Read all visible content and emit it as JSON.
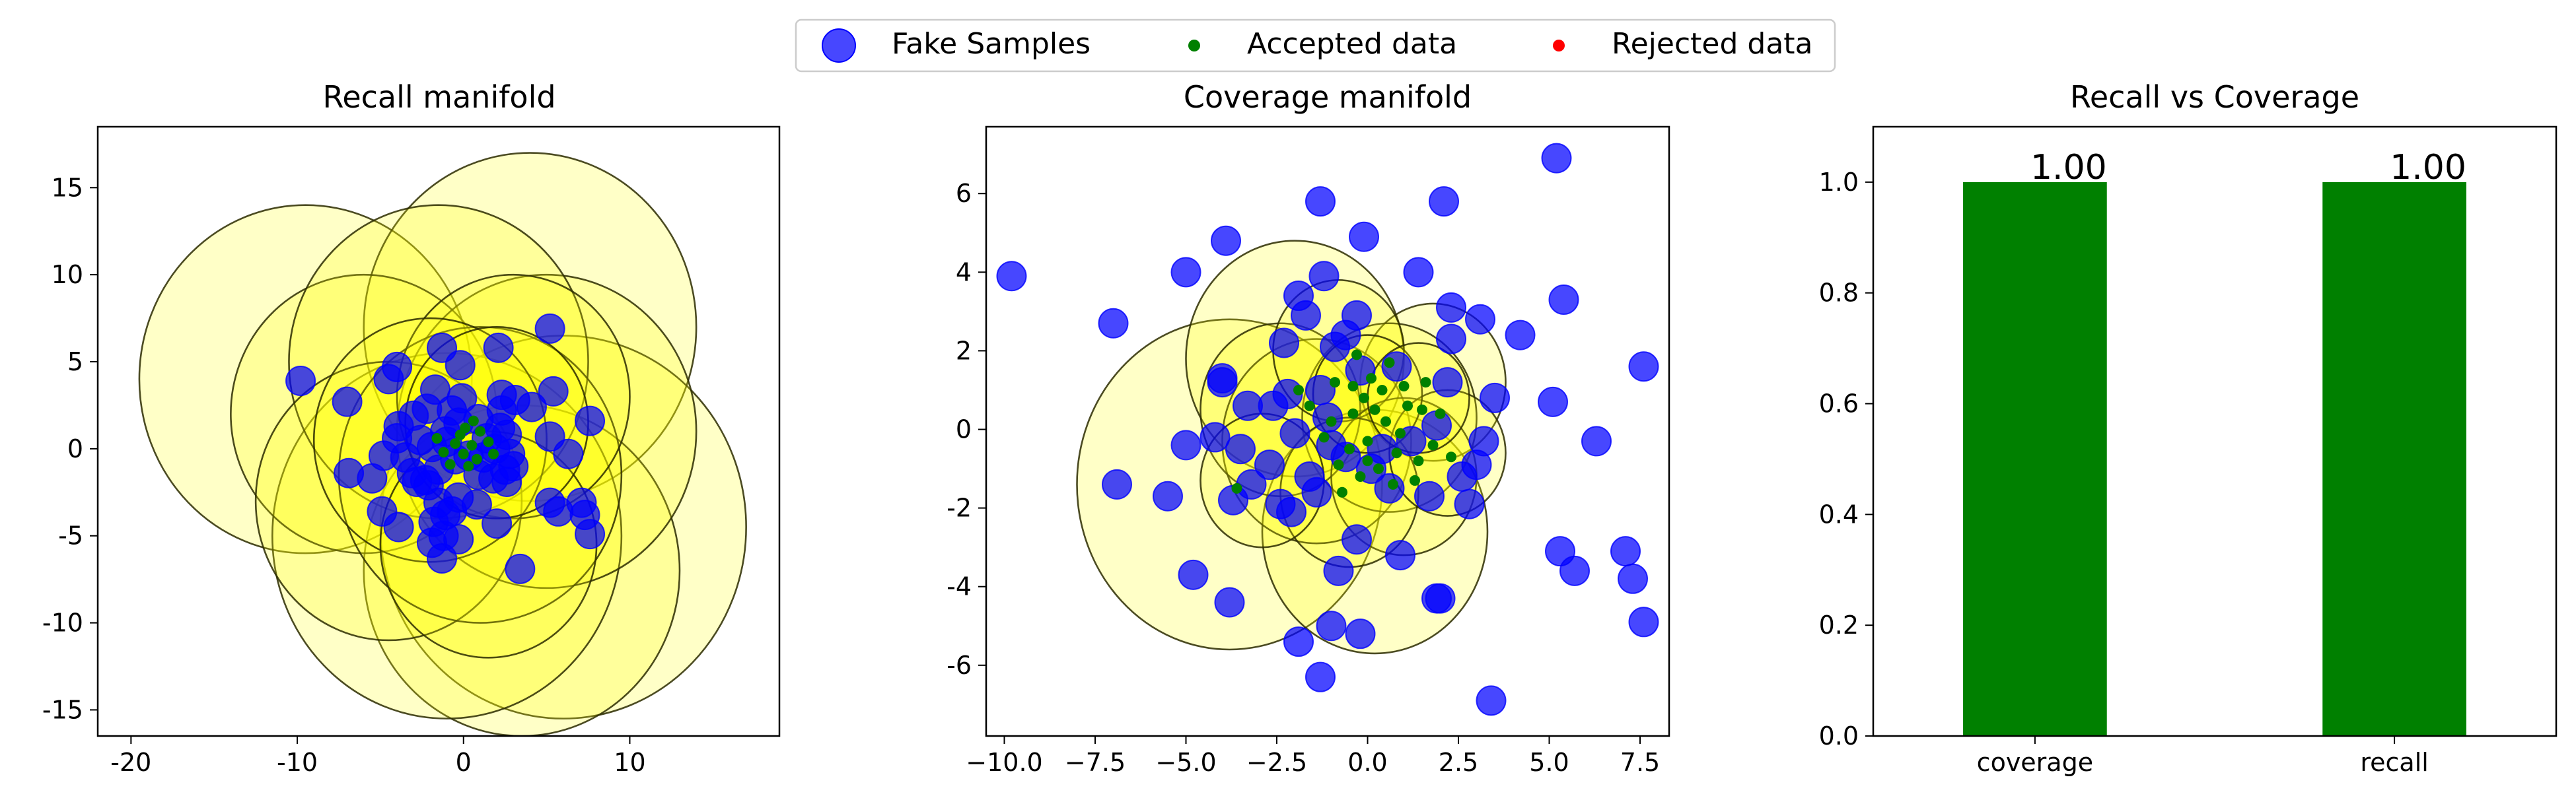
{
  "legend": {
    "entries": [
      {
        "label": "Fake Samples",
        "color": "#0000ff",
        "marker": "large-circle"
      },
      {
        "label": "Accepted data",
        "color": "#008000",
        "marker": "small-dot"
      },
      {
        "label": "Rejected data",
        "color": "#ff0000",
        "marker": "small-dot"
      }
    ]
  },
  "chart_data": [
    {
      "type": "scatter",
      "title": "Recall manifold",
      "xlim": [
        -22,
        19
      ],
      "ylim": [
        -16.5,
        18.5
      ],
      "xticks": [
        -20,
        -10,
        0,
        10
      ],
      "yticks": [
        -15,
        -10,
        -5,
        0,
        5,
        10,
        15
      ],
      "circles": [
        {
          "cx": -9.5,
          "cy": 4.0,
          "r": 10.0
        },
        {
          "cx": 4.0,
          "cy": 7.0,
          "r": 10.0
        },
        {
          "cx": 6.0,
          "cy": -4.5,
          "r": 11.0
        },
        {
          "cx": 3.5,
          "cy": -7.0,
          "r": 9.5
        },
        {
          "cx": -1.0,
          "cy": -5.0,
          "r": 10.5
        },
        {
          "cx": -6.0,
          "cy": 2.0,
          "r": 8.0
        },
        {
          "cx": 5.0,
          "cy": 1.0,
          "r": 9.0
        },
        {
          "cx": -1.5,
          "cy": 5.0,
          "r": 9.0
        },
        {
          "cx": -4.5,
          "cy": -3.0,
          "r": 8.0
        },
        {
          "cx": 1.0,
          "cy": -1.5,
          "r": 8.5
        },
        {
          "cx": 3.0,
          "cy": 3.0,
          "r": 7.0
        },
        {
          "cx": -2.0,
          "cy": 0.5,
          "r": 7.0
        },
        {
          "cx": 1.5,
          "cy": -5.5,
          "r": 6.5
        },
        {
          "cx": 2.0,
          "cy": 1.5,
          "r": 5.5
        }
      ],
      "fake_samples": [
        [
          -9.8,
          3.9
        ],
        [
          -7.0,
          2.7
        ],
        [
          -4.5,
          4.0
        ],
        [
          -4.0,
          4.7
        ],
        [
          -1.3,
          5.8
        ],
        [
          2.1,
          5.8
        ],
        [
          5.2,
          6.9
        ],
        [
          -0.2,
          4.8
        ],
        [
          -1.7,
          3.4
        ],
        [
          -2.2,
          2.3
        ],
        [
          -3.0,
          1.9
        ],
        [
          -3.9,
          1.3
        ],
        [
          -4.0,
          0.6
        ],
        [
          -3.5,
          -0.5
        ],
        [
          -4.8,
          -0.4
        ],
        [
          -5.5,
          -1.7
        ],
        [
          -6.9,
          -1.4
        ],
        [
          -2.8,
          -1.9
        ],
        [
          -2.1,
          -2.1
        ],
        [
          -1.5,
          -3.1
        ],
        [
          -1.1,
          -3.8
        ],
        [
          -0.3,
          -2.8
        ],
        [
          0.8,
          -3.2
        ],
        [
          2.0,
          -4.3
        ],
        [
          -0.7,
          -3.6
        ],
        [
          -1.8,
          -4.2
        ],
        [
          -4.9,
          -3.6
        ],
        [
          -3.9,
          -4.5
        ],
        [
          -1.9,
          -5.4
        ],
        [
          -1.2,
          -5.0
        ],
        [
          -0.3,
          -5.2
        ],
        [
          -1.3,
          -6.3
        ],
        [
          3.4,
          -6.9
        ],
        [
          5.2,
          -3.1
        ],
        [
          5.7,
          -3.6
        ],
        [
          7.1,
          -3.1
        ],
        [
          7.3,
          -3.8
        ],
        [
          7.6,
          -4.9
        ],
        [
          6.3,
          -0.3
        ],
        [
          5.2,
          0.7
        ],
        [
          5.4,
          3.3
        ],
        [
          7.6,
          1.6
        ],
        [
          4.1,
          2.4
        ],
        [
          3.1,
          2.8
        ],
        [
          2.3,
          3.1
        ],
        [
          2.3,
          2.2
        ],
        [
          2.2,
          1.2
        ],
        [
          2.6,
          0.8
        ],
        [
          1.4,
          0.6
        ],
        [
          0.9,
          1.7
        ],
        [
          -0.1,
          2.9
        ],
        [
          -0.7,
          2.2
        ],
        [
          -1.1,
          1.0
        ],
        [
          -1.9,
          0.1
        ],
        [
          -2.6,
          0.5
        ],
        [
          -0.5,
          -0.6
        ],
        [
          0.3,
          -0.4
        ],
        [
          1.2,
          -0.5
        ],
        [
          1.9,
          0.0
        ],
        [
          2.8,
          -0.3
        ],
        [
          2.5,
          -1.2
        ],
        [
          1.8,
          -1.7
        ],
        [
          2.6,
          -1.9
        ],
        [
          3.0,
          -1.0
        ],
        [
          0.9,
          -1.5
        ],
        [
          -1.5,
          -1.2
        ],
        [
          -2.3,
          -1.8
        ],
        [
          -3.1,
          -1.4
        ],
        [
          -1.0,
          0.4
        ],
        [
          -0.3,
          1.5
        ]
      ],
      "accepted_points": [
        [
          0.1,
          1.2
        ],
        [
          -0.5,
          0.3
        ],
        [
          0.8,
          -0.6
        ],
        [
          1.5,
          0.4
        ],
        [
          -1.2,
          -0.2
        ],
        [
          0.3,
          -1.0
        ],
        [
          -0.2,
          0.8
        ],
        [
          1.0,
          1.0
        ],
        [
          -0.8,
          -0.9
        ],
        [
          0.5,
          0.2
        ],
        [
          1.8,
          -0.3
        ],
        [
          -1.6,
          0.6
        ],
        [
          0.0,
          -0.3
        ],
        [
          0.6,
          1.6
        ]
      ],
      "rejected_points": []
    },
    {
      "type": "scatter",
      "title": "Coverage manifold",
      "xlim": [
        -10.5,
        8.3
      ],
      "ylim": [
        -7.8,
        7.7
      ],
      "xticks": [
        -10.0,
        -7.5,
        -5.0,
        -2.5,
        0.0,
        2.5,
        5.0,
        7.5
      ],
      "xtick_labels": [
        "−10.0",
        "−7.5",
        "−5.0",
        "−2.5",
        "0.0",
        "2.5",
        "5.0",
        "7.5"
      ],
      "yticks": [
        -6,
        -4,
        -2,
        0,
        2,
        4,
        6
      ],
      "circles": [
        {
          "cx": -3.8,
          "cy": -1.4,
          "r": 4.2
        },
        {
          "cx": -2.0,
          "cy": 1.8,
          "r": 3.0
        },
        {
          "cx": 0.2,
          "cy": -2.6,
          "r": 3.1
        },
        {
          "cx": 1.8,
          "cy": 1.2,
          "r": 2.0
        },
        {
          "cx": -1.4,
          "cy": -0.3,
          "r": 2.6
        },
        {
          "cx": 0.6,
          "cy": 0.3,
          "r": 2.4
        },
        {
          "cx": -2.4,
          "cy": 0.5,
          "r": 2.2
        },
        {
          "cx": -0.8,
          "cy": 2.0,
          "r": 1.8
        },
        {
          "cx": 1.0,
          "cy": -1.2,
          "r": 2.0
        },
        {
          "cx": -0.5,
          "cy": -1.6,
          "r": 1.9
        },
        {
          "cx": 2.2,
          "cy": -0.6,
          "r": 1.6
        },
        {
          "cx": -2.9,
          "cy": -1.3,
          "r": 1.7
        },
        {
          "cx": 0.0,
          "cy": 0.9,
          "r": 1.5
        },
        {
          "cx": 1.4,
          "cy": 0.8,
          "r": 1.4
        }
      ],
      "fake_samples": [
        [
          -9.8,
          3.9
        ],
        [
          -7.0,
          2.7
        ],
        [
          -5.0,
          4.0
        ],
        [
          -3.9,
          4.8
        ],
        [
          -1.3,
          5.8
        ],
        [
          2.1,
          5.8
        ],
        [
          5.2,
          6.9
        ],
        [
          -0.1,
          4.9
        ],
        [
          -1.9,
          3.4
        ],
        [
          -2.3,
          2.2
        ],
        [
          -0.9,
          2.1
        ],
        [
          -4.0,
          1.3
        ],
        [
          -4.0,
          1.2
        ],
        [
          -3.3,
          0.6
        ],
        [
          -5.0,
          -0.4
        ],
        [
          -3.5,
          -0.5
        ],
        [
          -4.2,
          -0.2
        ],
        [
          -5.5,
          -1.7
        ],
        [
          -6.9,
          -1.4
        ],
        [
          -3.7,
          -1.8
        ],
        [
          -2.1,
          -2.1
        ],
        [
          -1.4,
          -1.6
        ],
        [
          -0.8,
          -3.6
        ],
        [
          -0.3,
          -2.8
        ],
        [
          0.9,
          -3.2
        ],
        [
          2.0,
          -4.3
        ],
        [
          -4.8,
          -3.7
        ],
        [
          -3.8,
          -4.4
        ],
        [
          -1.9,
          -5.4
        ],
        [
          -1.0,
          -5.0
        ],
        [
          -0.2,
          -5.2
        ],
        [
          -1.3,
          -6.3
        ],
        [
          3.4,
          -6.9
        ],
        [
          5.3,
          -3.1
        ],
        [
          5.7,
          -3.6
        ],
        [
          7.1,
          -3.1
        ],
        [
          7.3,
          -3.8
        ],
        [
          7.6,
          -4.9
        ],
        [
          6.3,
          -0.3
        ],
        [
          5.1,
          0.7
        ],
        [
          5.4,
          3.3
        ],
        [
          7.6,
          1.6
        ],
        [
          4.2,
          2.4
        ],
        [
          3.1,
          2.8
        ],
        [
          2.3,
          3.1
        ],
        [
          2.3,
          2.3
        ],
        [
          2.2,
          1.2
        ],
        [
          3.5,
          0.8
        ],
        [
          1.4,
          4.0
        ],
        [
          0.8,
          1.6
        ],
        [
          -0.3,
          2.9
        ],
        [
          -0.6,
          2.4
        ],
        [
          -1.3,
          1.0
        ],
        [
          -2.0,
          -0.1
        ],
        [
          -2.6,
          0.6
        ],
        [
          -0.6,
          -0.7
        ],
        [
          0.4,
          -0.5
        ],
        [
          1.2,
          -0.3
        ],
        [
          1.9,
          0.1
        ],
        [
          3.2,
          -0.3
        ],
        [
          2.6,
          -1.2
        ],
        [
          1.7,
          -1.7
        ],
        [
          2.8,
          -1.9
        ],
        [
          3.0,
          -0.9
        ],
        [
          0.6,
          -1.5
        ],
        [
          -1.6,
          -1.2
        ],
        [
          -2.4,
          -1.9
        ],
        [
          -3.2,
          -1.4
        ],
        [
          -1.1,
          0.3
        ],
        [
          -0.2,
          1.5
        ],
        [
          -1.7,
          2.9
        ],
        [
          -1.0,
          -0.4
        ],
        [
          0.1,
          -1.0
        ],
        [
          1.9,
          -4.3
        ],
        [
          -1.2,
          3.9
        ],
        [
          -2.7,
          -0.9
        ],
        [
          -2.2,
          0.9
        ]
      ],
      "accepted_points": [
        [
          0.1,
          1.3
        ],
        [
          -0.4,
          0.4
        ],
        [
          0.8,
          -0.6
        ],
        [
          1.5,
          0.5
        ],
        [
          -1.2,
          -0.2
        ],
        [
          0.3,
          -1.0
        ],
        [
          -0.1,
          0.8
        ],
        [
          1.0,
          1.1
        ],
        [
          -0.8,
          -0.9
        ],
        [
          0.5,
          0.2
        ],
        [
          1.8,
          -0.4
        ],
        [
          -1.6,
          0.6
        ],
        [
          0.0,
          -0.3
        ],
        [
          0.6,
          1.7
        ],
        [
          -0.3,
          1.9
        ],
        [
          1.3,
          -1.3
        ],
        [
          -0.9,
          1.2
        ],
        [
          0.9,
          -0.1
        ],
        [
          -0.5,
          -0.5
        ],
        [
          1.6,
          1.2
        ],
        [
          0.2,
          0.5
        ],
        [
          -1.0,
          0.2
        ],
        [
          0.7,
          -1.4
        ],
        [
          -0.2,
          -1.2
        ],
        [
          1.1,
          0.6
        ],
        [
          -1.9,
          1.0
        ],
        [
          2.0,
          0.4
        ],
        [
          0.4,
          1.0
        ],
        [
          -3.6,
          -1.5
        ],
        [
          -0.7,
          -1.6
        ],
        [
          1.4,
          -0.8
        ],
        [
          -0.4,
          1.1
        ],
        [
          0.0,
          -0.8
        ],
        [
          2.3,
          -0.7
        ]
      ],
      "rejected_points": []
    },
    {
      "type": "bar",
      "title": "Recall vs Coverage",
      "categories": [
        "coverage",
        "recall"
      ],
      "values": [
        1.0,
        1.0
      ],
      "data_labels": [
        "1.00",
        "1.00"
      ],
      "ylim": [
        0,
        1.1
      ],
      "yticks": [
        0.0,
        0.2,
        0.4,
        0.6,
        0.8,
        1.0
      ],
      "ytick_labels": [
        "0.0",
        "0.2",
        "0.4",
        "0.6",
        "0.8",
        "1.0"
      ],
      "color": "#008000"
    }
  ]
}
